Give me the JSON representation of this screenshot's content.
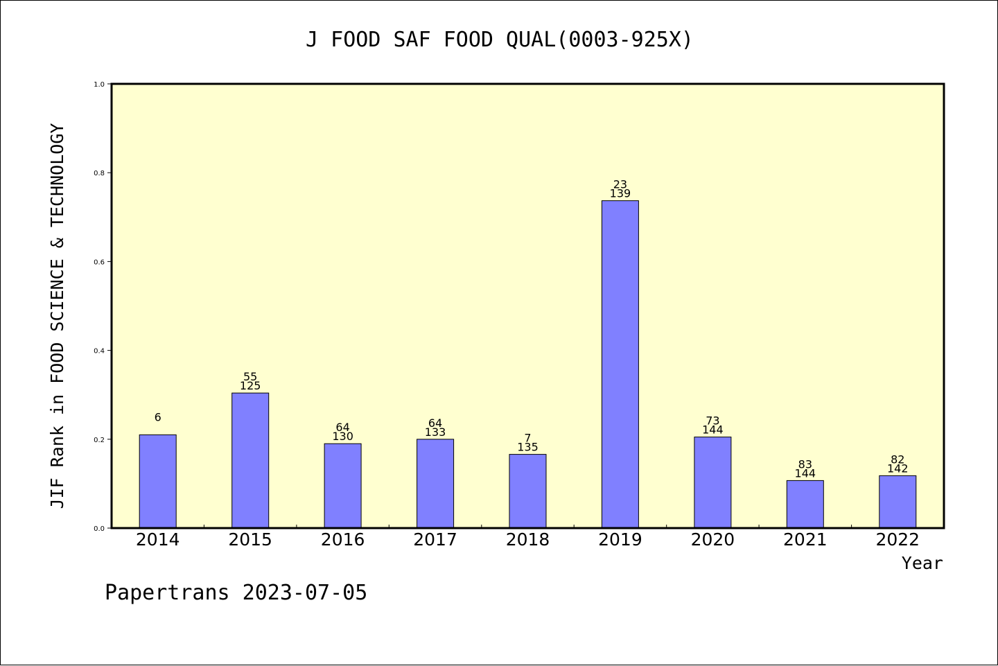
{
  "footer": {
    "text": "Papertrans 2023-07-05"
  },
  "colors": {
    "plot_background": "#ffffd0",
    "bar_fill": "#8080ff",
    "axis": "#000000"
  },
  "chart_data": {
    "type": "bar",
    "title": "J FOOD SAF FOOD QUAL(0003-925X)",
    "xlabel": "Year",
    "ylabel": "JIF Rank in FOOD SCIENCE & TECHNOLOGY",
    "categories": [
      "2014",
      "2015",
      "2016",
      "2017",
      "2018",
      "2019",
      "2020",
      "2021",
      "2022"
    ],
    "values": [
      0.21,
      0.304,
      0.19,
      0.2,
      0.166,
      0.737,
      0.205,
      0.107,
      0.118
    ],
    "rank_labels": [
      "6",
      "55",
      "64",
      "64",
      "7",
      "23",
      "73",
      "83",
      "82"
    ],
    "total_labels": [
      "",
      "125",
      "130",
      "133",
      "135",
      "139",
      "144",
      "144",
      "142"
    ],
    "ylim": [
      0,
      1.0
    ],
    "yticks": [
      "0.0",
      "0.2",
      "0.4",
      "0.6",
      "0.8",
      "1.0"
    ],
    "grid": false,
    "legend": "none"
  }
}
